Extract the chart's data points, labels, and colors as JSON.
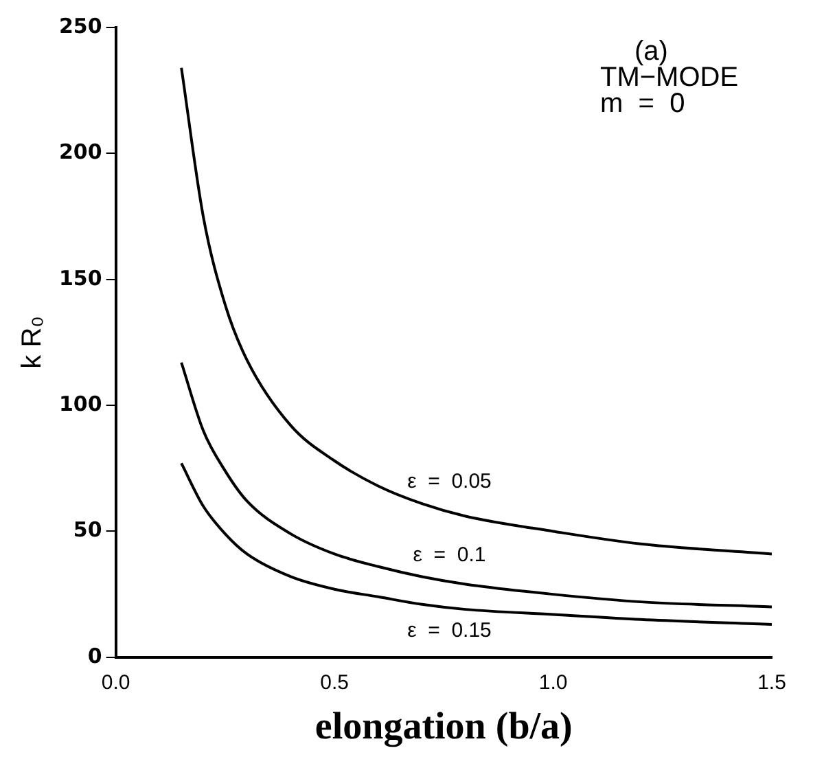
{
  "chart_data": {
    "type": "line",
    "xlabel": "elongation (b/a)",
    "ylabel": "k R₀",
    "annotations": [
      "(a)",
      "TM−MODE",
      "m  =  0"
    ],
    "xlim": [
      0,
      1.5
    ],
    "xticks": [
      {
        "value": 0,
        "label": "0.0"
      },
      {
        "value": 0.5,
        "label": "0.5"
      },
      {
        "value": 1,
        "label": "1.0"
      },
      {
        "value": 1.5,
        "label": "1.5"
      }
    ],
    "ylim": [
      0,
      250
    ],
    "yticks": [
      0,
      50,
      100,
      150,
      200,
      250
    ],
    "grid": false,
    "legend": false,
    "marker": "none",
    "line_style": "solid",
    "series": [
      {
        "name": "ε  =  0.05",
        "color": "#000000",
        "x": [
          0.15,
          0.2,
          0.25,
          0.3,
          0.4,
          0.5,
          0.6,
          0.7,
          0.8,
          1.0,
          1.2,
          1.5
        ],
        "values": [
          234,
          175,
          140,
          118,
          92,
          78,
          68,
          61,
          56,
          50,
          45,
          41
        ]
      },
      {
        "name": "ε  =  0.1",
        "color": "#000000",
        "x": [
          0.15,
          0.2,
          0.25,
          0.3,
          0.4,
          0.5,
          0.6,
          0.7,
          0.8,
          1.0,
          1.2,
          1.5
        ],
        "values": [
          117,
          90,
          74,
          62,
          49,
          41,
          36,
          32,
          29,
          25,
          22,
          20
        ]
      },
      {
        "name": "ε  =  0.15",
        "color": "#000000",
        "x": [
          0.15,
          0.2,
          0.25,
          0.3,
          0.4,
          0.5,
          0.6,
          0.7,
          0.8,
          1.0,
          1.2,
          1.5
        ],
        "values": [
          77,
          60,
          49,
          41,
          32,
          27,
          24,
          21,
          19,
          17,
          15,
          13
        ]
      }
    ]
  }
}
